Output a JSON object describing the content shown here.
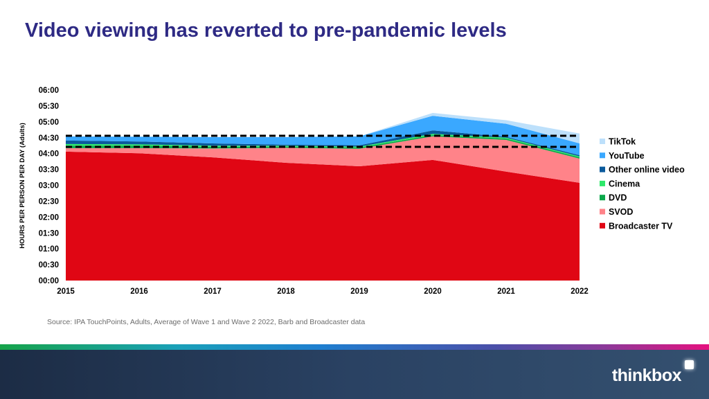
{
  "title": "Video viewing has reverted to pre-pandemic levels",
  "source": "Source: IPA TouchPoints, Adults,  Average  of Wave 1 and Wave 2 2022, Barb and Broadcaster data",
  "logo": "thinkbox",
  "chart_data": {
    "type": "area",
    "stacked": true,
    "title": "",
    "xlabel": "",
    "ylabel": "HOURS PER PERSON PER DAY (Adults)",
    "categories": [
      "2015",
      "2016",
      "2017",
      "2018",
      "2019",
      "2020",
      "2021",
      "2022"
    ],
    "ylim": [
      0,
      6
    ],
    "y_unit": "hours",
    "y_ticks": [
      "00:00",
      "00:30",
      "01:00",
      "01:30",
      "02:00",
      "02:30",
      "03:00",
      "03:30",
      "04:00",
      "04:30",
      "05:00",
      "05:30",
      "06:00"
    ],
    "grid": false,
    "legend_position": "right",
    "series": [
      {
        "name": "Broadcaster TV",
        "color": "#e00614",
        "values": [
          4.06,
          4.01,
          3.88,
          3.71,
          3.6,
          3.8,
          3.43,
          3.08
        ]
      },
      {
        "name": "SVOD",
        "color": "#ff8389",
        "values": [
          0.11,
          0.16,
          0.28,
          0.47,
          0.55,
          0.74,
          1.0,
          0.76
        ]
      },
      {
        "name": "DVD",
        "color": "#0aa84a",
        "values": [
          0.08,
          0.08,
          0.05,
          0.04,
          0.04,
          0.04,
          0.04,
          0.04
        ]
      },
      {
        "name": "Cinema",
        "color": "#2ee86a",
        "values": [
          0.05,
          0.04,
          0.04,
          0.03,
          0.03,
          0.04,
          0.03,
          0.03
        ]
      },
      {
        "name": "Other online video",
        "color": "#0a5a9c",
        "values": [
          0.11,
          0.09,
          0.07,
          0.03,
          0.04,
          0.11,
          0.03,
          0.04
        ]
      },
      {
        "name": "YouTube",
        "color": "#3aa8ff",
        "values": [
          0.13,
          0.15,
          0.2,
          0.24,
          0.28,
          0.46,
          0.41,
          0.37
        ]
      },
      {
        "name": "TikTok",
        "color": "#bde0fb",
        "values": [
          0,
          0,
          0,
          0,
          0,
          0.09,
          0.11,
          0.31
        ]
      }
    ],
    "reference_lines": [
      {
        "style": "dashed",
        "value": 4.56
      },
      {
        "style": "dashed",
        "value": 4.21
      }
    ]
  }
}
